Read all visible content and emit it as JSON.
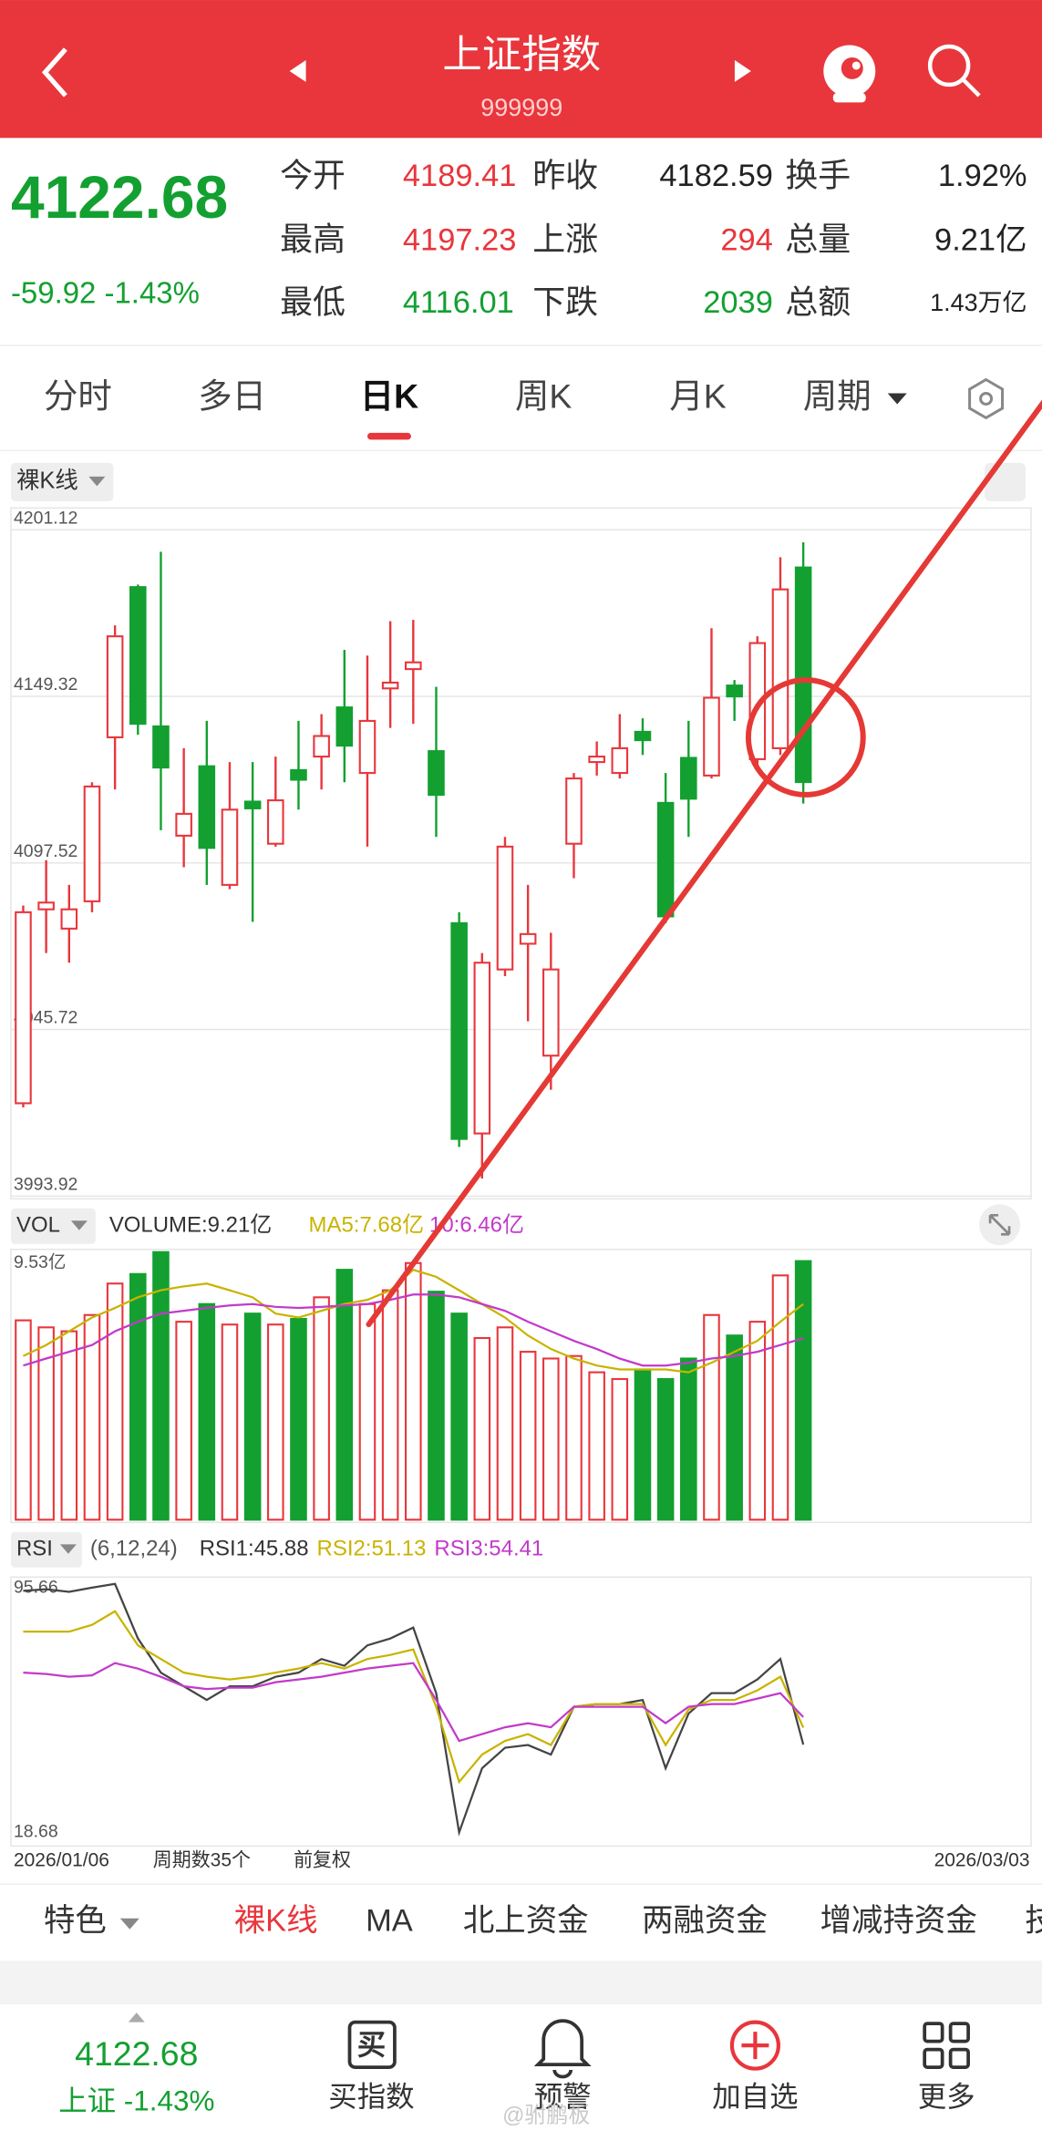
{
  "header": {
    "title": "上证指数",
    "code": "999999"
  },
  "quote": {
    "price": "4122.68",
    "change": "-59.92 -1.43%",
    "cells": [
      [
        [
          "今开",
          "4189.41",
          "up"
        ],
        [
          "昨收",
          "4182.59",
          "flat"
        ],
        [
          "换手",
          "1.92%",
          "flat"
        ]
      ],
      [
        [
          "最高",
          "4197.23",
          "up"
        ],
        [
          "上涨",
          "294",
          "up"
        ],
        [
          "总量",
          "9.21亿",
          "flat"
        ]
      ],
      [
        [
          "最低",
          "4116.01",
          "down"
        ],
        [
          "下跌",
          "2039",
          "down"
        ],
        [
          "总额",
          "1.43万亿",
          "flat"
        ]
      ]
    ]
  },
  "tabs": {
    "items": [
      "分时",
      "多日",
      "日K",
      "周K",
      "月K",
      "周期"
    ],
    "selected": 2
  },
  "chart_data": [
    {
      "type": "candlestick",
      "label": "裸K线",
      "up_color": "#e8363c",
      "down_color": "#13a031",
      "ylim": [
        3993.92,
        4201.12
      ],
      "yticks": [
        4201.12,
        4149.32,
        4097.52,
        4045.72,
        3993.92
      ],
      "grid": true,
      "open": [
        4022.8,
        4083.1,
        4077.1,
        4085.6,
        4136.6,
        4183.3,
        4140.0,
        4106.0,
        4127.6,
        4090.7,
        4116.6,
        4103.5,
        4126.4,
        4130.6,
        4145.9,
        4125.5,
        4151.8,
        4157.8,
        4132.3,
        4078.8,
        4013.4,
        4064.4,
        4072.4,
        4037.6,
        4103.5,
        4128.9,
        4125.5,
        4138.3,
        4116.2,
        4130.2,
        4124.7,
        4152.7,
        4129.8,
        4133.2,
        4189.41
      ],
      "high": [
        4084.3,
        4098.4,
        4090.7,
        4122.6,
        4171.4,
        4184.1,
        4194.3,
        4133.2,
        4141.7,
        4128.9,
        4128.9,
        4130.6,
        4141.7,
        4143.8,
        4163.8,
        4162.0,
        4172.7,
        4173.1,
        4152.3,
        4082.2,
        4069.5,
        4105.6,
        4090.7,
        4075.8,
        4125.5,
        4135.3,
        4143.8,
        4142.5,
        4125.5,
        4141.7,
        4170.5,
        4154.4,
        4168.0,
        4192.6,
        4197.23
      ],
      "low": [
        4021.5,
        4069.5,
        4066.5,
        4082.2,
        4120.4,
        4137.4,
        4107.7,
        4096.2,
        4090.7,
        4089.4,
        4079.2,
        4102.6,
        4114.1,
        4120.4,
        4122.6,
        4102.6,
        4139.5,
        4140.8,
        4105.6,
        4009.2,
        3999.4,
        4062.3,
        4048.3,
        4027.0,
        4092.8,
        4124.7,
        4123.8,
        4131.1,
        4078.8,
        4105.6,
        4123.8,
        4141.7,
        4127.6,
        4131.1,
        4116.01
      ],
      "close": [
        4082.2,
        4085.2,
        4083.1,
        4121.3,
        4168.0,
        4140.8,
        4127.2,
        4112.8,
        4102.2,
        4114.1,
        4114.5,
        4117.0,
        4123.4,
        4137.0,
        4134.0,
        4141.7,
        4153.6,
        4159.9,
        4118.7,
        4011.7,
        4066.5,
        4102.6,
        4075.4,
        4064.4,
        4123.8,
        4130.6,
        4133.2,
        4135.7,
        4080.9,
        4117.5,
        4148.9,
        4149.3,
        4165.9,
        4182.59,
        4122.68
      ]
    },
    {
      "type": "bar",
      "label": "VOL",
      "ylim": [
        0,
        9.53
      ],
      "yticks": [
        {
          "value": 9.53,
          "label": "9.53亿"
        }
      ],
      "values": [
        7.1,
        6.85,
        6.71,
        7.29,
        8.41,
        8.75,
        9.53,
        7.05,
        7.68,
        6.95,
        7.34,
        6.95,
        7.15,
        7.92,
        8.9,
        7.68,
        8.17,
        9.14,
        8.12,
        7.34,
        6.47,
        6.85,
        5.98,
        5.74,
        5.83,
        5.25,
        5.01,
        5.35,
        5.01,
        5.74,
        7.29,
        6.56,
        7.05,
        8.7,
        9.21
      ],
      "legend": "VOLUME:9.21亿",
      "series": [
        {
          "name": "MA5",
          "legend": "MA5:7.68亿",
          "color": "#c9b300",
          "values": [
            5.83,
            6.22,
            6.71,
            7.2,
            7.54,
            7.92,
            8.17,
            8.31,
            8.41,
            8.17,
            7.92,
            7.34,
            7.2,
            7.44,
            7.68,
            7.83,
            8.17,
            8.9,
            8.65,
            8.17,
            7.68,
            7.2,
            6.56,
            6.08,
            5.74,
            5.49,
            5.35,
            5.35,
            5.35,
            5.25,
            5.59,
            5.98,
            6.37,
            7.05,
            7.68
          ]
        },
        {
          "name": "MA10",
          "legend": "10:6.46亿",
          "color": "#c23ac9",
          "values": [
            5.49,
            5.74,
            5.98,
            6.22,
            6.71,
            7.05,
            7.34,
            7.44,
            7.54,
            7.63,
            7.68,
            7.58,
            7.54,
            7.58,
            7.63,
            7.68,
            7.83,
            8.02,
            8.02,
            7.92,
            7.68,
            7.44,
            7.05,
            6.71,
            6.37,
            6.08,
            5.74,
            5.49,
            5.49,
            5.59,
            5.74,
            5.83,
            5.98,
            6.22,
            6.46
          ]
        }
      ]
    },
    {
      "type": "line",
      "label": "RSI",
      "params": "(6,12,24)",
      "ylim": [
        18.68,
        95.66
      ],
      "yticks": [
        95.66,
        18.68
      ],
      "x_labels": [
        "2026/01/06",
        "2026/03/03"
      ],
      "period_count": "周期数35个",
      "adjust": "前复权",
      "series": [
        {
          "name": "RSI1",
          "legend": "RSI1:45.88",
          "color": "#444444",
          "values": [
            93.5,
            94.0,
            93.2,
            94.5,
            95.66,
            78.74,
            68.16,
            63.93,
            59.7,
            63.93,
            63.93,
            66.89,
            68.16,
            72.39,
            70.28,
            76.62,
            78.74,
            82.12,
            61.82,
            18.68,
            38.55,
            44.9,
            45.75,
            42.79,
            57.59,
            58.44,
            58.44,
            59.7,
            38.55,
            55.48,
            61.82,
            61.82,
            66.05,
            72.39,
            45.88
          ]
        },
        {
          "name": "RSI2",
          "legend": "RSI2:51.13",
          "color": "#c9b300",
          "values": [
            80.86,
            80.86,
            80.86,
            82.97,
            87.2,
            76.62,
            72.39,
            68.16,
            66.89,
            66.05,
            66.89,
            68.16,
            69.43,
            71.13,
            69.43,
            72.39,
            73.66,
            75.36,
            57.59,
            34.32,
            42.79,
            47.02,
            49.13,
            45.75,
            57.59,
            58.44,
            58.44,
            58.44,
            45.75,
            56.74,
            59.7,
            59.7,
            62.66,
            66.89,
            51.13
          ]
        },
        {
          "name": "RSI3",
          "legend": "RSI3:54.41",
          "color": "#c23ac9",
          "values": [
            68.16,
            67.74,
            66.89,
            67.32,
            71.13,
            69.43,
            66.89,
            63.93,
            63.09,
            63.51,
            63.51,
            65.2,
            66.05,
            66.89,
            68.16,
            69.43,
            70.28,
            71.13,
            59.7,
            47.02,
            49.13,
            51.24,
            52.51,
            51.24,
            57.59,
            57.59,
            57.59,
            57.59,
            52.51,
            57.59,
            58.44,
            58.44,
            60.13,
            61.82,
            54.41
          ]
        }
      ]
    }
  ],
  "indicator_tabs": {
    "items": [
      "特色",
      "裸K线",
      "MA",
      "北上资金",
      "两融资金",
      "增减持资金",
      "技"
    ],
    "selected": 1
  },
  "bottom_nav": {
    "price": "4122.68",
    "sub": "上证 -1.43%",
    "icon_text": "买",
    "items": [
      "买指数",
      "预警",
      "加自选",
      "更多"
    ],
    "watermark": "@驸鹏板"
  }
}
